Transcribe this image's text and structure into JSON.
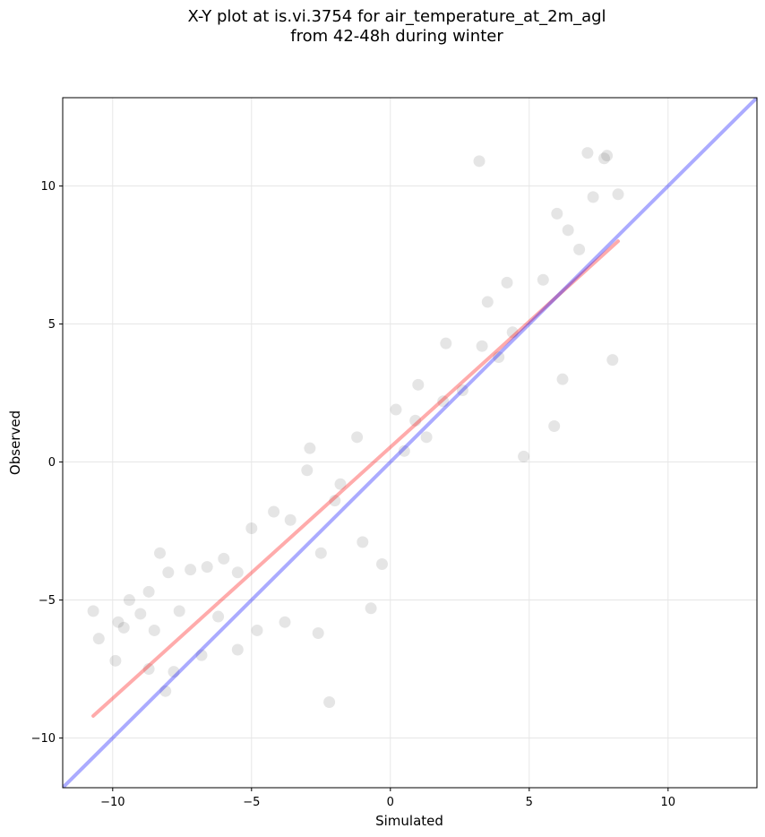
{
  "title_lines": [
    "X-Y plot at is.vi.3754 for air_temperature_at_2m_agl",
    "from 42-48h during winter"
  ],
  "chart_data": {
    "type": "scatter",
    "title": "X-Y plot at is.vi.3754 for air_temperature_at_2m_agl\nfrom 42-48h during winter",
    "xlabel": "Simulated",
    "ylabel": "Observed",
    "xlim": [
      -11.8,
      13.2
    ],
    "ylim": [
      -11.8,
      13.2
    ],
    "xticks": [
      -10,
      -5,
      0,
      5,
      10
    ],
    "yticks": [
      -10,
      -5,
      0,
      5,
      10
    ],
    "xtick_labels": [
      "−10",
      "−5",
      "0",
      "5",
      "10"
    ],
    "ytick_labels": [
      "−10",
      "−5",
      "0",
      "5",
      "10"
    ],
    "grid": true,
    "legend": "none",
    "colors": {
      "points": "#000000",
      "regression_line": "#ff0000",
      "identity_line": "#0000ff",
      "grid": "#e6e6e6"
    },
    "points": {
      "x": [
        -10.7,
        -10.5,
        -9.9,
        -9.8,
        -9.6,
        -9.0,
        -8.7,
        -8.5,
        -8.3,
        -8.1,
        -8.0,
        -7.6,
        -7.2,
        -6.8,
        -6.6,
        -6.2,
        -5.5,
        -5.0,
        -4.8,
        -4.2,
        -3.8,
        -3.0,
        -2.6,
        -2.2,
        -2.0,
        -1.0,
        -0.3,
        0.5,
        1.3,
        1.9,
        2.6,
        3.3,
        3.9,
        4.4,
        5.5,
        6.2,
        6.8,
        7.3,
        7.8,
        8.0,
        8.2,
        -2.5,
        -1.8,
        0.2,
        1.0,
        4.8,
        3.2,
        5.9,
        7.1,
        -1.2,
        -9.4,
        -7.8,
        -5.5,
        -3.6,
        -0.7,
        2.0,
        4.2,
        6.4,
        7.7,
        -8.7,
        -6.0,
        -2.9,
        0.9,
        3.5,
        6.0
      ],
      "y": [
        -5.4,
        -6.4,
        -7.2,
        -5.8,
        -6.0,
        -5.5,
        -4.7,
        -6.1,
        -3.3,
        -8.3,
        -4.0,
        -5.4,
        -3.9,
        -7.0,
        -3.8,
        -5.6,
        -4.0,
        -2.4,
        -6.1,
        -1.8,
        -5.8,
        -0.3,
        -6.2,
        -8.7,
        -1.4,
        -2.9,
        -3.7,
        0.4,
        0.9,
        2.2,
        2.6,
        4.2,
        3.8,
        4.7,
        6.6,
        3.0,
        7.7,
        9.6,
        11.1,
        3.7,
        9.7,
        -3.3,
        -0.8,
        1.9,
        2.8,
        0.2,
        10.9,
        1.3,
        11.2,
        0.9,
        -5.0,
        -7.6,
        -6.8,
        -2.1,
        -5.3,
        4.3,
        6.5,
        8.4,
        11.0,
        -7.5,
        -3.5,
        0.5,
        1.5,
        5.8,
        9.0
      ]
    },
    "regression_line": {
      "x": [
        -10.7,
        8.2
      ],
      "y": [
        -9.2,
        8.0
      ]
    },
    "identity_line": {
      "x": [
        -11.8,
        13.2
      ],
      "y": [
        -11.8,
        13.2
      ]
    }
  }
}
